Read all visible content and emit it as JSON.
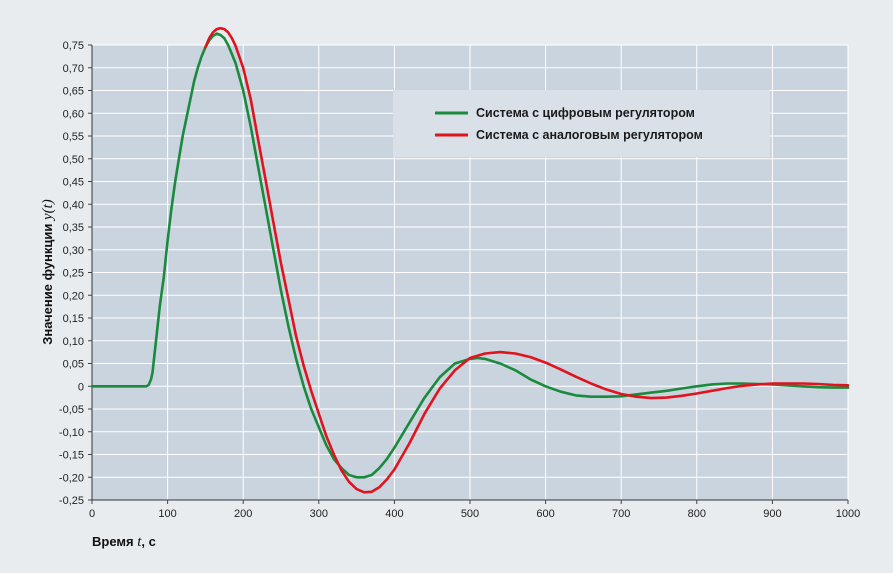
{
  "chart_data": {
    "type": "line",
    "xlabel_prefix": "Время ",
    "xlabel_var": "t",
    "xlabel_suffix": ", с",
    "ylabel_prefix": "Значение функции ",
    "ylabel_var": "y",
    "ylabel_paren_open": "(",
    "ylabel_paren_close": ")",
    "xlim": [
      0,
      1000
    ],
    "ylim": [
      -0.25,
      0.75
    ],
    "x_ticks": [
      0,
      100,
      200,
      300,
      400,
      500,
      600,
      700,
      800,
      900,
      1000
    ],
    "x_tick_labels": [
      "0",
      "100",
      "200",
      "300",
      "400",
      "500",
      "600",
      "700",
      "800",
      "900",
      "1000"
    ],
    "y_ticks": [
      0.75,
      0.7,
      0.65,
      0.6,
      0.55,
      0.5,
      0.45,
      0.4,
      0.35,
      0.3,
      0.25,
      0.2,
      0.15,
      0.1,
      0.05,
      0,
      -0.05,
      -0.1,
      -0.15,
      -0.2,
      -0.25
    ],
    "y_tick_labels": [
      "0,75",
      "0,70",
      "0,65",
      "0,60",
      "0,55",
      "0,50",
      "0,45",
      "0,40",
      "0,35",
      "0,30",
      "0,25",
      "0,20",
      "0,15",
      "0,10",
      "0,05",
      "0",
      "-0,05",
      "-0,10",
      "-0,15",
      "-0,20",
      "-0,25"
    ],
    "grid": true,
    "legend_position": "upper-right",
    "plot_background": "#c9d4df",
    "series": [
      {
        "name": "Система с цифровым регулятором",
        "color": "#1a8a3c",
        "x": [
          0,
          72,
          75,
          78,
          80,
          82,
          84,
          86,
          88,
          90,
          92,
          95,
          100,
          105,
          110,
          115,
          120,
          125,
          130,
          135,
          140,
          145,
          150,
          155,
          160,
          165,
          170,
          175,
          180,
          185,
          190,
          200,
          210,
          220,
          230,
          240,
          250,
          260,
          270,
          280,
          290,
          300,
          310,
          320,
          330,
          340,
          350,
          360,
          370,
          380,
          390,
          400,
          420,
          440,
          460,
          480,
          500,
          510,
          520,
          530,
          540,
          560,
          580,
          600,
          620,
          640,
          660,
          680,
          700,
          720,
          740,
          760,
          780,
          800,
          820,
          840,
          860,
          880,
          900,
          920,
          940,
          960,
          980,
          1000
        ],
        "y": [
          0,
          0,
          0.003,
          0.015,
          0.03,
          0.06,
          0.09,
          0.12,
          0.15,
          0.18,
          0.205,
          0.24,
          0.32,
          0.39,
          0.45,
          0.5,
          0.55,
          0.59,
          0.63,
          0.67,
          0.7,
          0.725,
          0.745,
          0.76,
          0.77,
          0.775,
          0.772,
          0.765,
          0.75,
          0.73,
          0.71,
          0.65,
          0.57,
          0.48,
          0.39,
          0.3,
          0.21,
          0.13,
          0.06,
          0.0,
          -0.05,
          -0.09,
          -0.13,
          -0.16,
          -0.18,
          -0.195,
          -0.2,
          -0.2,
          -0.195,
          -0.18,
          -0.16,
          -0.135,
          -0.08,
          -0.025,
          0.02,
          0.05,
          0.06,
          0.062,
          0.06,
          0.055,
          0.05,
          0.035,
          0.015,
          0.0,
          -0.012,
          -0.02,
          -0.023,
          -0.023,
          -0.022,
          -0.018,
          -0.014,
          -0.01,
          -0.005,
          0.0,
          0.004,
          0.006,
          0.006,
          0.005,
          0.004,
          0.002,
          0.0,
          -0.002,
          -0.003,
          -0.003
        ]
      },
      {
        "name": "Система с аналоговым регулятором",
        "color": "#e0141e",
        "x": [
          150,
          155,
          160,
          165,
          170,
          175,
          180,
          185,
          190,
          200,
          210,
          220,
          230,
          240,
          250,
          260,
          270,
          280,
          290,
          300,
          310,
          320,
          330,
          340,
          350,
          360,
          370,
          380,
          390,
          400,
          420,
          440,
          460,
          480,
          500,
          520,
          540,
          560,
          580,
          600,
          620,
          640,
          660,
          680,
          700,
          720,
          740,
          760,
          780,
          800,
          820,
          840,
          860,
          880,
          900,
          920,
          940,
          960,
          980,
          1000
        ],
        "y": [
          0.745,
          0.765,
          0.778,
          0.785,
          0.787,
          0.785,
          0.778,
          0.765,
          0.748,
          0.7,
          0.63,
          0.54,
          0.45,
          0.36,
          0.27,
          0.19,
          0.11,
          0.045,
          -0.01,
          -0.06,
          -0.11,
          -0.15,
          -0.185,
          -0.21,
          -0.226,
          -0.233,
          -0.232,
          -0.222,
          -0.205,
          -0.183,
          -0.125,
          -0.06,
          -0.005,
          0.035,
          0.062,
          0.072,
          0.075,
          0.072,
          0.064,
          0.052,
          0.037,
          0.021,
          0.006,
          -0.007,
          -0.017,
          -0.023,
          -0.026,
          -0.025,
          -0.021,
          -0.016,
          -0.01,
          -0.004,
          0.001,
          0.004,
          0.006,
          0.006,
          0.006,
          0.005,
          0.003,
          0.002
        ]
      }
    ]
  }
}
